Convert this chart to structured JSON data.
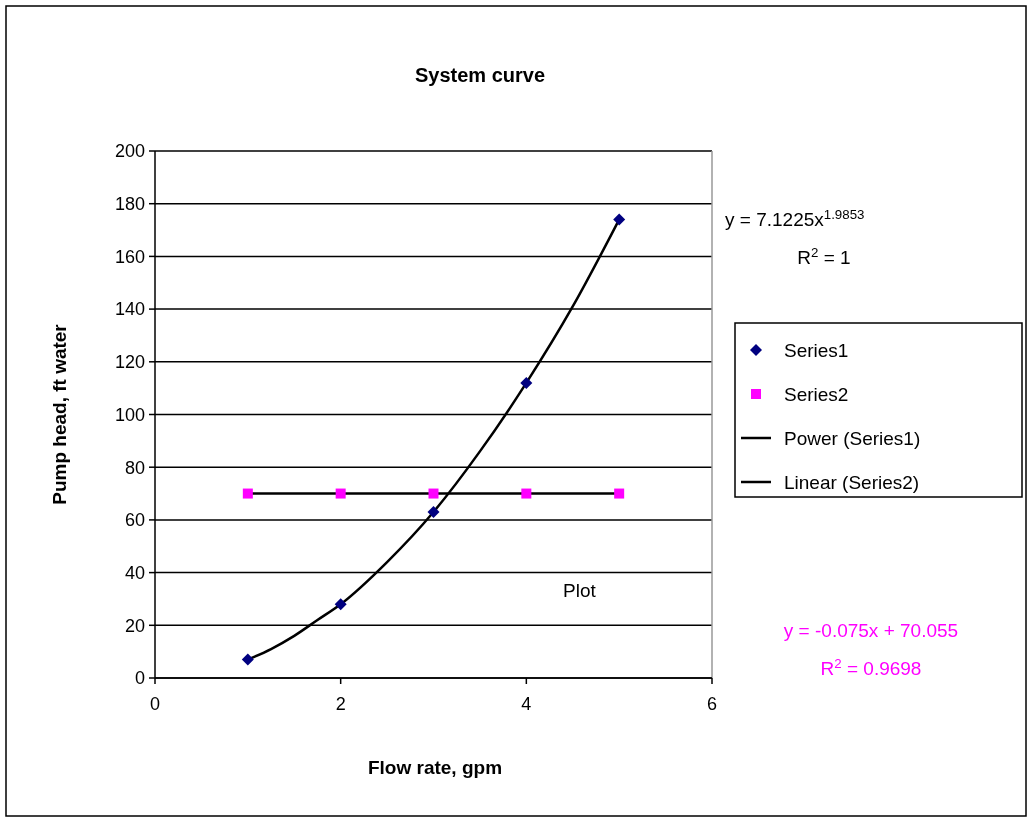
{
  "chart_data": {
    "type": "scatter",
    "title": "System curve",
    "xlabel": "Flow rate, gpm",
    "ylabel": "Pump head, ft water",
    "xlim": [
      0,
      6
    ],
    "xticks": [
      0,
      2,
      4,
      6
    ],
    "ylim": [
      0,
      200
    ],
    "yticks": [
      0,
      20,
      40,
      60,
      80,
      100,
      120,
      140,
      160,
      180,
      200
    ],
    "grid": "y",
    "legend": "right",
    "series": [
      {
        "name": "Series1",
        "marker": "diamond",
        "color": "#000080",
        "x": [
          1,
          2,
          3,
          4,
          5
        ],
        "values": [
          7,
          28,
          63,
          112,
          174
        ]
      },
      {
        "name": "Series2",
        "marker": "square",
        "color": "#ff00ff",
        "x": [
          1,
          2,
          3,
          4,
          5
        ],
        "values": [
          70,
          70,
          70,
          70,
          70
        ]
      },
      {
        "name": "Power (Series1)",
        "type": "line",
        "marker": "none",
        "color": "#000000",
        "x": [
          1,
          1.25,
          1.5,
          1.75,
          2,
          2.5,
          3,
          3.5,
          4,
          4.5,
          5
        ],
        "values": [
          7,
          11,
          16,
          22,
          28,
          44,
          63,
          86,
          112,
          141,
          174
        ]
      },
      {
        "name": "Linear (Series2)",
        "type": "line",
        "marker": "none",
        "color": "#000000",
        "x": [
          1,
          5
        ],
        "values": [
          70,
          70
        ]
      }
    ],
    "annotations": [
      "y = 7.1225x$^{1.9853}$",
      "R$^{2}$ = 1",
      "y = -0.075x + 70.055",
      "R$^{2}$ = 0.9698",
      "Plot"
    ]
  }
}
